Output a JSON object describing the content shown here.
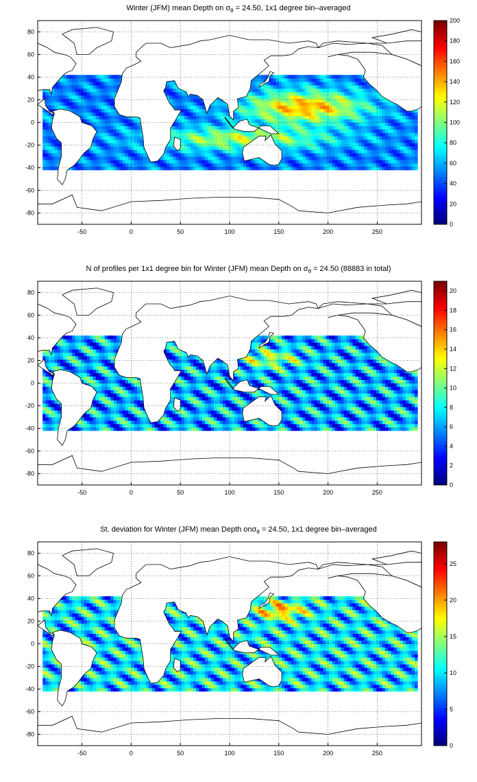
{
  "chart_data": [
    {
      "type": "heatmap",
      "title_prefix": "Winter (JFM) mean Depth on σ",
      "title_sub": "θ",
      "title_suffix": " = 24.50, 1x1 degree bin–averaged",
      "xticks": [
        "-50",
        "0",
        "50",
        "100",
        "150",
        "200",
        "250"
      ],
      "yticks": [
        "80",
        "60",
        "40",
        "20",
        "0",
        "-20",
        "-40",
        "-60",
        "-80"
      ],
      "xlim": [
        -95,
        295
      ],
      "ylim": [
        -90,
        90
      ],
      "colorbar": {
        "ticks": [
          "0",
          "20",
          "40",
          "60",
          "80",
          "100",
          "120",
          "140",
          "160",
          "180",
          "200"
        ],
        "min": 0,
        "max": 200
      },
      "grid": true,
      "colormap": "jet"
    },
    {
      "type": "heatmap",
      "title_prefix": "N of profiles per 1x1 degree bin for Winter (JFM) mean Depth on σ",
      "title_sub": "θ",
      "title_suffix": " = 24.50 (88883 in total)",
      "xticks": [
        "-50",
        "0",
        "50",
        "100",
        "150",
        "200",
        "250"
      ],
      "yticks": [
        "80",
        "60",
        "40",
        "20",
        "0",
        "-20",
        "-40",
        "-60",
        "-80"
      ],
      "xlim": [
        -95,
        295
      ],
      "ylim": [
        -90,
        90
      ],
      "colorbar": {
        "ticks": [
          "0",
          "2",
          "4",
          "6",
          "8",
          "10",
          "12",
          "14",
          "16",
          "18",
          "20"
        ],
        "min": 0,
        "max": 21
      },
      "grid": true,
      "colormap": "jet"
    },
    {
      "type": "heatmap",
      "title_prefix": "St. deviation for Winter (JFM) mean Depth onσ",
      "title_sub": "θ",
      "title_suffix": " = 24.50, 1x1 degree bin–averaged",
      "xticks": [
        "-50",
        "0",
        "50",
        "100",
        "150",
        "200",
        "250"
      ],
      "yticks": [
        "80",
        "60",
        "40",
        "20",
        "0",
        "-20",
        "-40",
        "-60",
        "-80"
      ],
      "xlim": [
        -95,
        295
      ],
      "ylim": [
        -90,
        90
      ],
      "colorbar": {
        "ticks": [
          "0",
          "5",
          "10",
          "15",
          "20",
          "25"
        ],
        "min": 0,
        "max": 28
      },
      "grid": true,
      "colormap": "jet"
    }
  ]
}
